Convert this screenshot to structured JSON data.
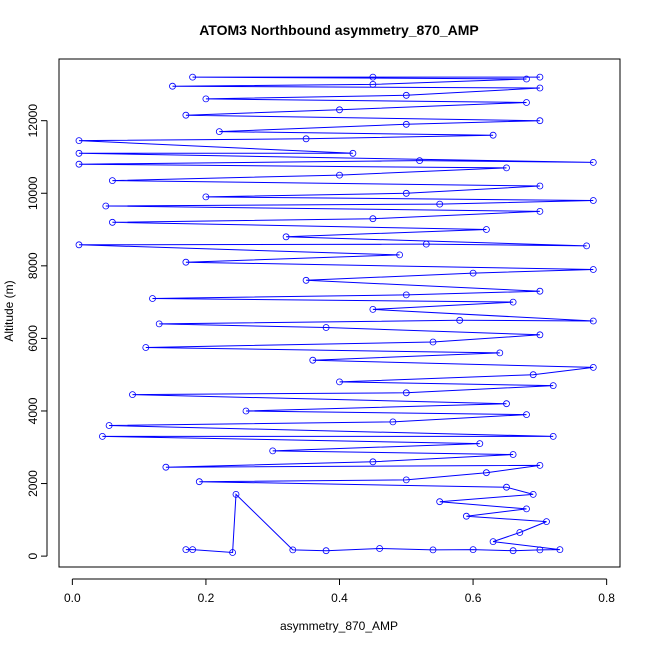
{
  "chart_data": {
    "type": "scatter",
    "title": "ATOM3 Northbound asymmetry_870_AMP",
    "xlabel": "asymmetry_870_AMP",
    "ylabel": "Altitude (m)",
    "xlim": [
      -0.02,
      0.82
    ],
    "ylim": [
      -300,
      13700
    ],
    "x_ticks": [
      0.0,
      0.2,
      0.4,
      0.6,
      0.8
    ],
    "x_tick_labels": [
      "0.0",
      "0.2",
      "0.4",
      "0.6",
      "0.8"
    ],
    "y_ticks": [
      0,
      2000,
      4000,
      6000,
      8000,
      10000,
      12000
    ],
    "y_tick_labels": [
      "0",
      "2000",
      "4000",
      "6000",
      "8000",
      "10000",
      "12000"
    ],
    "series_style": "points connected by lines (open circles)",
    "color": "#0000ff",
    "grid": false,
    "legend": "none",
    "series": [
      {
        "values": [
          [
            0.17,
            180
          ],
          [
            0.18,
            180
          ],
          [
            0.24,
            100
          ],
          [
            0.245,
            1700
          ],
          [
            0.33,
            170
          ],
          [
            0.38,
            150
          ],
          [
            0.46,
            210
          ],
          [
            0.54,
            170
          ],
          [
            0.6,
            180
          ],
          [
            0.66,
            150
          ],
          [
            0.7,
            170
          ],
          [
            0.73,
            180
          ],
          [
            0.63,
            400
          ],
          [
            0.67,
            650
          ],
          [
            0.71,
            950
          ],
          [
            0.59,
            1100
          ],
          [
            0.68,
            1300
          ],
          [
            0.55,
            1500
          ],
          [
            0.69,
            1700
          ],
          [
            0.65,
            1900
          ],
          [
            0.19,
            2050
          ],
          [
            0.5,
            2100
          ],
          [
            0.62,
            2300
          ],
          [
            0.7,
            2500
          ],
          [
            0.14,
            2450
          ],
          [
            0.45,
            2600
          ],
          [
            0.66,
            2800
          ],
          [
            0.3,
            2900
          ],
          [
            0.61,
            3100
          ],
          [
            0.045,
            3300
          ],
          [
            0.72,
            3300
          ],
          [
            0.055,
            3600
          ],
          [
            0.48,
            3700
          ],
          [
            0.68,
            3900
          ],
          [
            0.26,
            4000
          ],
          [
            0.65,
            4200
          ],
          [
            0.09,
            4450
          ],
          [
            0.5,
            4500
          ],
          [
            0.72,
            4700
          ],
          [
            0.4,
            4800
          ],
          [
            0.69,
            5000
          ],
          [
            0.78,
            5200
          ],
          [
            0.36,
            5400
          ],
          [
            0.64,
            5600
          ],
          [
            0.11,
            5750
          ],
          [
            0.54,
            5900
          ],
          [
            0.7,
            6100
          ],
          [
            0.38,
            6300
          ],
          [
            0.13,
            6400
          ],
          [
            0.58,
            6500
          ],
          [
            0.78,
            6480
          ],
          [
            0.45,
            6800
          ],
          [
            0.66,
            7000
          ],
          [
            0.12,
            7100
          ],
          [
            0.5,
            7200
          ],
          [
            0.7,
            7300
          ],
          [
            0.35,
            7600
          ],
          [
            0.6,
            7800
          ],
          [
            0.78,
            7900
          ],
          [
            0.17,
            8100
          ],
          [
            0.49,
            8300
          ],
          [
            0.01,
            8580
          ],
          [
            0.53,
            8600
          ],
          [
            0.77,
            8550
          ],
          [
            0.32,
            8800
          ],
          [
            0.62,
            9000
          ],
          [
            0.06,
            9200
          ],
          [
            0.45,
            9300
          ],
          [
            0.7,
            9500
          ],
          [
            0.05,
            9650
          ],
          [
            0.55,
            9700
          ],
          [
            0.78,
            9800
          ],
          [
            0.2,
            9900
          ],
          [
            0.5,
            10000
          ],
          [
            0.7,
            10200
          ],
          [
            0.06,
            10350
          ],
          [
            0.4,
            10500
          ],
          [
            0.65,
            10700
          ],
          [
            0.01,
            10800
          ],
          [
            0.52,
            10900
          ],
          [
            0.78,
            10850
          ],
          [
            0.01,
            11100
          ],
          [
            0.42,
            11100
          ],
          [
            0.01,
            11450
          ],
          [
            0.35,
            11500
          ],
          [
            0.63,
            11600
          ],
          [
            0.22,
            11700
          ],
          [
            0.5,
            11900
          ],
          [
            0.7,
            12000
          ],
          [
            0.17,
            12150
          ],
          [
            0.4,
            12300
          ],
          [
            0.68,
            12500
          ],
          [
            0.2,
            12600
          ],
          [
            0.5,
            12700
          ],
          [
            0.7,
            12900
          ],
          [
            0.15,
            12950
          ],
          [
            0.45,
            13000
          ],
          [
            0.68,
            13150
          ],
          [
            0.18,
            13200
          ],
          [
            0.45,
            13200
          ],
          [
            0.7,
            13200
          ]
        ]
      }
    ]
  }
}
